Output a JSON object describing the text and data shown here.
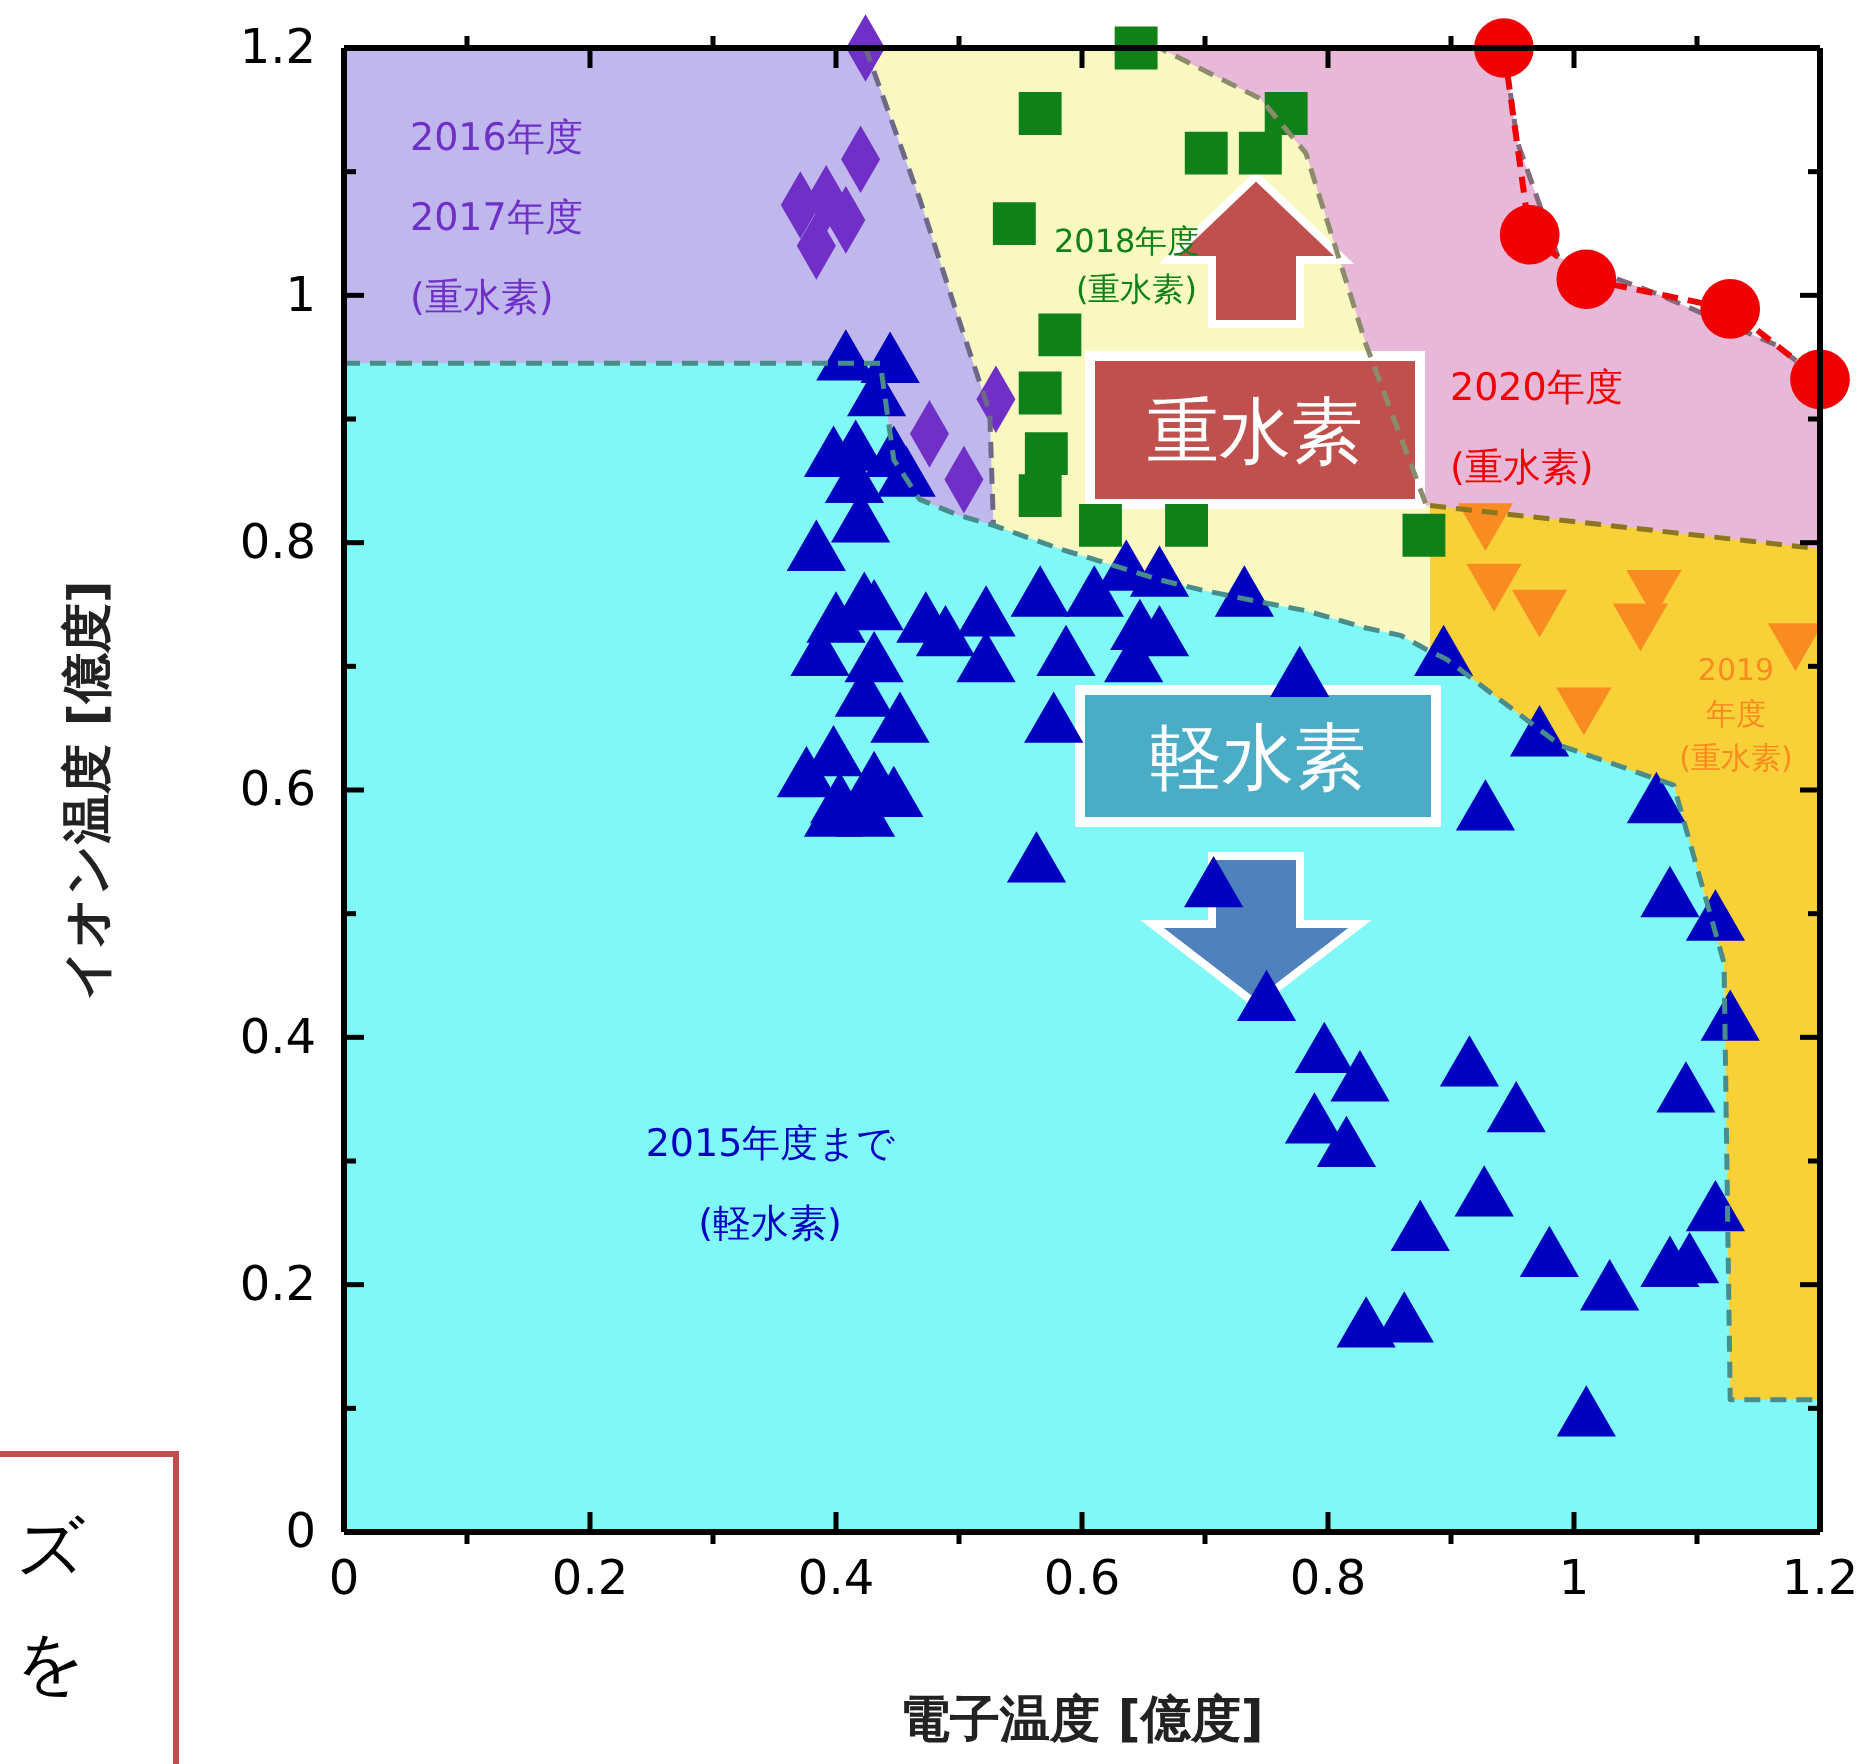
{
  "chart_data": {
    "type": "scatter",
    "xlabel": "電子温度 [億度]",
    "ylabel": "イオン温度 [億度]",
    "xlim": [
      0,
      1.2
    ],
    "ylim": [
      0,
      1.2
    ],
    "xticks": [
      0,
      {
        "value": 0.1,
        "label": null
      },
      0.2,
      {
        "value": 0.3,
        "label": null
      },
      0.4,
      {
        "value": 0.5,
        "label": null
      },
      0.6,
      {
        "value": 0.7,
        "label": null
      },
      0.8,
      {
        "value": 0.9,
        "label": null
      },
      1,
      {
        "value": 1.1,
        "label": null
      },
      1.2
    ],
    "yticks": [
      0,
      {
        "value": 0.1,
        "label": null
      },
      0.2,
      {
        "value": 0.3,
        "label": null
      },
      0.4,
      {
        "value": 0.5,
        "label": null
      },
      0.6,
      {
        "value": 0.7,
        "label": null
      },
      0.8,
      {
        "value": 0.9,
        "label": null
      },
      1,
      {
        "value": 1.1,
        "label": null
      },
      1.2
    ],
    "annotations": [
      "重水素",
      "軽水素",
      "ズ",
      "を"
    ],
    "series": [
      {
        "type": "area",
        "color": "#e8b8d8",
        "line_style": "dashed",
        "x": [
          0.663,
          0.943,
          0.954,
          0.987,
          1.068,
          1.164,
          1.2
        ],
        "values": [
          1.2,
          1.2,
          1.124,
          1.031,
          1.001,
          0.96,
          0.932
        ]
      },
      {
        "type": "area",
        "color": "#f8f8c0",
        "line_style": "dashed",
        "x": [
          0.424,
          0.663,
          0.745,
          0.782,
          0.831,
          0.88,
          0.883
        ],
        "values": [
          1.2,
          1.2,
          1.159,
          1.115,
          0.96,
          0.83,
          0.83
        ]
      },
      {
        "type": "area",
        "color": "#c0b8ec",
        "line_style": "dashed",
        "x": [
          0,
          0.424,
          0.468,
          0.5,
          0.525,
          0.528
        ],
        "values": [
          1.2,
          1.2,
          1.078,
          0.98,
          0.905,
          0.814
        ]
      },
      {
        "type": "area",
        "color": "#f8d038",
        "line_style": "dashed",
        "x": [
          0.883,
          1.2
        ],
        "values": [
          0.83,
          0.795
        ]
      },
      {
        "type": "area",
        "color": "#80f8f8",
        "line_style": "dashed",
        "x": [
          0,
          0.436,
          0.447,
          0.468,
          0.5,
          0.528,
          0.582,
          0.663,
          0.696,
          0.745,
          0.782,
          0.831,
          0.859,
          0.883,
          0.896,
          0.989,
          1.081,
          1.122,
          1.127,
          1.2
        ],
        "values": [
          0.945,
          0.945,
          0.867,
          0.835,
          0.822,
          0.814,
          0.795,
          0.77,
          0.762,
          0.752,
          0.745,
          0.731,
          0.725,
          0.712,
          0.706,
          0.636,
          0.604,
          0.46,
          0.107,
          0.107
        ]
      },
      {
        "name": "2015年度まで (軽水素)",
        "color": "#0000c0",
        "marker": "triangle",
        "x": [
          0.408,
          0.444,
          0.433,
          0.398,
          0.416,
          0.447,
          0.415,
          0.457,
          0.42,
          0.384,
          0.423,
          0.4,
          0.431,
          0.473,
          0.489,
          0.522,
          0.387,
          0.431,
          0.522,
          0.566,
          0.587,
          0.61,
          0.636,
          0.663,
          0.647,
          0.663,
          0.642,
          0.732,
          0.423,
          0.452,
          0.577,
          0.398,
          0.376,
          0.431,
          0.403,
          0.447,
          0.398,
          0.424,
          0.563,
          0.894,
          0.972,
          0.928,
          0.777,
          0.707,
          0.75,
          0.797,
          0.826,
          0.789,
          0.815,
          0.915,
          0.953,
          0.927,
          0.875,
          0.831,
          0.862,
          0.98,
          1.029,
          1.078,
          1.094,
          1.01,
          1.115,
          1.091,
          1.127,
          1.115,
          1.078,
          1.067
        ],
        "values": [
          0.945,
          0.943,
          0.916,
          0.867,
          0.872,
          0.867,
          0.846,
          0.851,
          0.814,
          0.791,
          0.749,
          0.733,
          0.743,
          0.733,
          0.722,
          0.738,
          0.706,
          0.701,
          0.701,
          0.754,
          0.706,
          0.754,
          0.775,
          0.77,
          0.727,
          0.722,
          0.701,
          0.754,
          0.673,
          0.652,
          0.652,
          0.625,
          0.608,
          0.604,
          0.587,
          0.592,
          0.576,
          0.576,
          0.539,
          0.706,
          0.641,
          0.581,
          0.689,
          0.519,
          0.427,
          0.385,
          0.362,
          0.328,
          0.309,
          0.374,
          0.337,
          0.269,
          0.241,
          0.163,
          0.167,
          0.22,
          0.193,
          0.212,
          0.215,
          0.091,
          0.257,
          0.353,
          0.411,
          0.492,
          0.511,
          0.587
        ]
      },
      {
        "name": "2016年度 2017年度 (重水素)",
        "color": "#7030c8",
        "marker": "diamond",
        "x": [
          0.424,
          0.42,
          0.371,
          0.392,
          0.408,
          0.384,
          0.53,
          0.476,
          0.504
        ],
        "values": [
          1.2,
          1.11,
          1.073,
          1.078,
          1.061,
          1.04,
          0.916,
          0.888,
          0.851
        ]
      },
      {
        "name": "2018年度 (重水素)",
        "color": "#108018",
        "marker": "square",
        "x": [
          0.566,
          0.545,
          0.644,
          0.701,
          0.745,
          0.766,
          0.878,
          0.582,
          0.566,
          0.571,
          0.566,
          0.615,
          0.685
        ],
        "values": [
          1.147,
          1.058,
          1.2,
          1.115,
          1.115,
          1.147,
          0.806,
          0.968,
          0.921,
          0.872,
          0.838,
          0.814,
          0.814
        ]
      },
      {
        "name": "2019 年度 (重水素)",
        "color": "#f88c20",
        "marker": "triangle-down",
        "x": [
          0.928,
          0.935,
          0.972,
          1.065,
          1.054,
          1.18,
          1.008
        ],
        "values": [
          0.819,
          0.77,
          0.749,
          0.765,
          0.738,
          0.722,
          0.67
        ]
      },
      {
        "name": "2020年度 (重水素)",
        "type": "line",
        "color": "#f00000",
        "marker": "circle",
        "line_style": "dashed",
        "x": [
          0.943,
          0.964,
          1.01,
          1.127,
          1.2
        ],
        "values": [
          1.2,
          1.049,
          1.013,
          0.989,
          0.932
        ]
      }
    ]
  }
}
